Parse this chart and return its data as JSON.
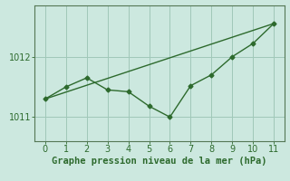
{
  "line1_x": [
    0,
    1,
    2,
    3,
    4,
    5,
    6,
    7,
    8,
    9,
    10,
    11
  ],
  "line1_y": [
    1011.3,
    1011.5,
    1011.65,
    1011.45,
    1011.42,
    1011.18,
    1011.0,
    1011.52,
    1011.7,
    1012.0,
    1012.22,
    1012.55
  ],
  "line2_x": [
    0,
    11
  ],
  "line2_y": [
    1011.3,
    1012.55
  ],
  "line_color": "#2d6a2d",
  "bg_color": "#cce8df",
  "grid_color": "#a0c8b8",
  "xlabel": "Graphe pression niveau de la mer (hPa)",
  "yticks": [
    1011,
    1012
  ],
  "xticks": [
    0,
    1,
    2,
    3,
    4,
    5,
    6,
    7,
    8,
    9,
    10,
    11
  ],
  "xlim": [
    -0.5,
    11.5
  ],
  "ylim": [
    1010.6,
    1012.85
  ],
  "xlabel_fontsize": 7.5,
  "tick_fontsize": 7
}
